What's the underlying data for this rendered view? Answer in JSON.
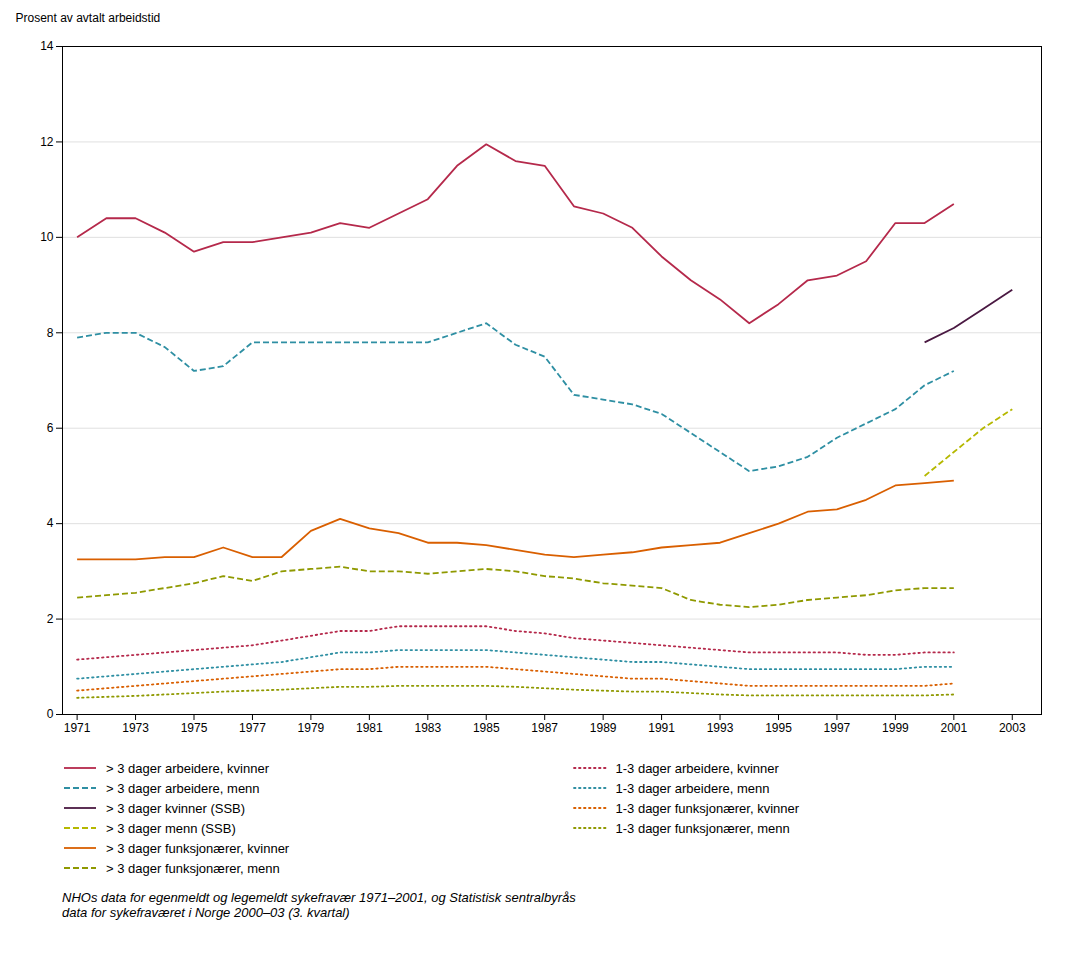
{
  "chart_data": {
    "type": "line",
    "ylabel": "Prosent av avtalt arbeidstid",
    "footnote": "NHOs data for egenmeldt og legemeldt sykefravær 1971–2001, og Statistisk sentralbyrås\ndata for sykefraværet i Norge 2000–03 (3. kvartal)",
    "xlim": [
      1970.5,
      2004
    ],
    "xticks": [
      1971,
      1973,
      1975,
      1977,
      1979,
      1981,
      1983,
      1985,
      1987,
      1989,
      1991,
      1993,
      1995,
      1997,
      1999,
      2001,
      2003
    ],
    "ylim": [
      0,
      14
    ],
    "yticks": [
      0,
      2,
      4,
      6,
      8,
      10,
      12,
      14
    ],
    "grid": true,
    "series": [
      {
        "name": "> 3 dager arbeidere, kvinner",
        "color": "#b5294b",
        "line_style": "solid",
        "x": [
          1971,
          1972,
          1973,
          1974,
          1975,
          1976,
          1977,
          1978,
          1979,
          1980,
          1981,
          1982,
          1983,
          1984,
          1985,
          1986,
          1987,
          1988,
          1989,
          1990,
          1991,
          1992,
          1993,
          1994,
          1995,
          1996,
          1997,
          1998,
          1999,
          2000,
          2001
        ],
        "values": [
          10.0,
          10.4,
          10.4,
          10.1,
          9.7,
          9.9,
          9.9,
          10.0,
          10.1,
          10.3,
          10.2,
          10.5,
          10.8,
          11.5,
          11.95,
          11.6,
          11.5,
          10.65,
          10.5,
          10.2,
          9.6,
          9.1,
          8.7,
          8.2,
          8.6,
          9.1,
          9.2,
          9.5,
          10.3,
          10.3,
          10.7
        ]
      },
      {
        "name": "> 3 dager arbeidere, menn",
        "color": "#2e8fa3",
        "line_style": "dashed",
        "x": [
          1971,
          1972,
          1973,
          1974,
          1975,
          1976,
          1977,
          1978,
          1979,
          1980,
          1981,
          1982,
          1983,
          1984,
          1985,
          1986,
          1987,
          1988,
          1989,
          1990,
          1991,
          1992,
          1993,
          1994,
          1995,
          1996,
          1997,
          1998,
          1999,
          2000,
          2001
        ],
        "values": [
          7.9,
          8.0,
          8.0,
          7.7,
          7.2,
          7.3,
          7.8,
          7.8,
          7.8,
          7.8,
          7.8,
          7.8,
          7.8,
          8.0,
          8.2,
          7.75,
          7.5,
          6.7,
          6.6,
          6.5,
          6.3,
          5.9,
          5.5,
          5.1,
          5.2,
          5.4,
          5.8,
          6.1,
          6.4,
          6.9,
          7.2
        ]
      },
      {
        "name": "> 3 dager kvinner (SSB)",
        "color": "#4a1942",
        "line_style": "solid",
        "x": [
          2000,
          2001,
          2002,
          2003
        ],
        "values": [
          7.8,
          8.1,
          8.5,
          8.9
        ]
      },
      {
        "name": "> 3 dager menn (SSB)",
        "color": "#b5b800",
        "line_style": "dashed",
        "x": [
          2000,
          2001,
          2002,
          2003
        ],
        "values": [
          5.0,
          5.5,
          6.0,
          6.4
        ]
      },
      {
        "name": "> 3 dager funksjonærer, kvinner",
        "color": "#d95f00",
        "line_style": "solid",
        "x": [
          1971,
          1972,
          1973,
          1974,
          1975,
          1976,
          1977,
          1978,
          1979,
          1980,
          1981,
          1982,
          1983,
          1984,
          1985,
          1986,
          1987,
          1988,
          1989,
          1990,
          1991,
          1992,
          1993,
          1994,
          1995,
          1996,
          1997,
          1998,
          1999,
          2000,
          2001
        ],
        "values": [
          3.25,
          3.25,
          3.25,
          3.3,
          3.3,
          3.5,
          3.3,
          3.3,
          3.85,
          4.1,
          3.9,
          3.8,
          3.6,
          3.6,
          3.55,
          3.45,
          3.35,
          3.3,
          3.35,
          3.4,
          3.5,
          3.55,
          3.6,
          3.8,
          4.0,
          4.25,
          4.3,
          4.5,
          4.8,
          4.85,
          4.9
        ]
      },
      {
        "name": "> 3 dager funksjonærer, menn",
        "color": "#8f9900",
        "line_style": "dashed",
        "x": [
          1971,
          1972,
          1973,
          1974,
          1975,
          1976,
          1977,
          1978,
          1979,
          1980,
          1981,
          1982,
          1983,
          1984,
          1985,
          1986,
          1987,
          1988,
          1989,
          1990,
          1991,
          1992,
          1993,
          1994,
          1995,
          1996,
          1997,
          1998,
          1999,
          2000,
          2001
        ],
        "values": [
          2.45,
          2.5,
          2.55,
          2.65,
          2.75,
          2.9,
          2.8,
          3.0,
          3.05,
          3.1,
          3.0,
          3.0,
          2.95,
          3.0,
          3.05,
          3.0,
          2.9,
          2.85,
          2.75,
          2.7,
          2.65,
          2.4,
          2.3,
          2.25,
          2.3,
          2.4,
          2.45,
          2.5,
          2.6,
          2.65,
          2.65
        ]
      },
      {
        "name": "1-3 dager arbeidere, kvinner",
        "color": "#b5294b",
        "line_style": "dotted",
        "x": [
          1971,
          1972,
          1973,
          1974,
          1975,
          1976,
          1977,
          1978,
          1979,
          1980,
          1981,
          1982,
          1983,
          1984,
          1985,
          1986,
          1987,
          1988,
          1989,
          1990,
          1991,
          1992,
          1993,
          1994,
          1995,
          1996,
          1997,
          1998,
          1999,
          2000,
          2001
        ],
        "values": [
          1.15,
          1.2,
          1.25,
          1.3,
          1.35,
          1.4,
          1.45,
          1.55,
          1.65,
          1.75,
          1.75,
          1.85,
          1.85,
          1.85,
          1.85,
          1.75,
          1.7,
          1.6,
          1.55,
          1.5,
          1.45,
          1.4,
          1.35,
          1.3,
          1.3,
          1.3,
          1.3,
          1.25,
          1.25,
          1.3,
          1.3
        ]
      },
      {
        "name": "1-3 dager arbeidere, menn",
        "color": "#2e8fa3",
        "line_style": "dotted",
        "x": [
          1971,
          1972,
          1973,
          1974,
          1975,
          1976,
          1977,
          1978,
          1979,
          1980,
          1981,
          1982,
          1983,
          1984,
          1985,
          1986,
          1987,
          1988,
          1989,
          1990,
          1991,
          1992,
          1993,
          1994,
          1995,
          1996,
          1997,
          1998,
          1999,
          2000,
          2001
        ],
        "values": [
          0.75,
          0.8,
          0.85,
          0.9,
          0.95,
          1.0,
          1.05,
          1.1,
          1.2,
          1.3,
          1.3,
          1.35,
          1.35,
          1.35,
          1.35,
          1.3,
          1.25,
          1.2,
          1.15,
          1.1,
          1.1,
          1.05,
          1.0,
          0.95,
          0.95,
          0.95,
          0.95,
          0.95,
          0.95,
          1.0,
          1.0
        ]
      },
      {
        "name": "1-3 dager funksjonærer, kvinner",
        "color": "#d95f00",
        "line_style": "dotted",
        "x": [
          1971,
          1972,
          1973,
          1974,
          1975,
          1976,
          1977,
          1978,
          1979,
          1980,
          1981,
          1982,
          1983,
          1984,
          1985,
          1986,
          1987,
          1988,
          1989,
          1990,
          1991,
          1992,
          1993,
          1994,
          1995,
          1996,
          1997,
          1998,
          1999,
          2000,
          2001
        ],
        "values": [
          0.5,
          0.55,
          0.6,
          0.65,
          0.7,
          0.75,
          0.8,
          0.85,
          0.9,
          0.95,
          0.95,
          1.0,
          1.0,
          1.0,
          1.0,
          0.95,
          0.9,
          0.85,
          0.8,
          0.75,
          0.75,
          0.7,
          0.65,
          0.6,
          0.6,
          0.6,
          0.6,
          0.6,
          0.6,
          0.6,
          0.65
        ]
      },
      {
        "name": "1-3 dager funksjonærer, menn",
        "color": "#8f9900",
        "line_style": "dotted",
        "x": [
          1971,
          1972,
          1973,
          1974,
          1975,
          1976,
          1977,
          1978,
          1979,
          1980,
          1981,
          1982,
          1983,
          1984,
          1985,
          1986,
          1987,
          1988,
          1989,
          1990,
          1991,
          1992,
          1993,
          1994,
          1995,
          1996,
          1997,
          1998,
          1999,
          2000,
          2001
        ],
        "values": [
          0.35,
          0.37,
          0.39,
          0.42,
          0.45,
          0.48,
          0.5,
          0.52,
          0.55,
          0.58,
          0.58,
          0.6,
          0.6,
          0.6,
          0.6,
          0.58,
          0.55,
          0.52,
          0.5,
          0.48,
          0.48,
          0.45,
          0.42,
          0.4,
          0.4,
          0.4,
          0.4,
          0.4,
          0.4,
          0.4,
          0.42
        ]
      }
    ]
  }
}
